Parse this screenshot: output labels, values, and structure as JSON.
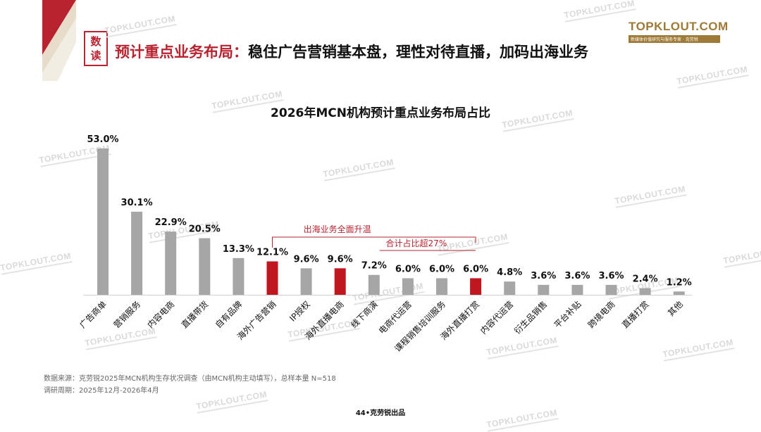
{
  "badge": {
    "line1": "数",
    "line2": "读"
  },
  "headline": {
    "highlight": "预计重点业务布局：",
    "rest": "稳住广告营销基本盘，理性对待直播，加码出海业务"
  },
  "logo": {
    "text": "TOPKLOUT.COM",
    "subtitle": "新媒体价值研究与服务专家 · 克劳锐"
  },
  "watermark": "TOPKLOUT.COM",
  "colors": {
    "accent": "#b8232f",
    "bar_default": "#a6a6a6",
    "bar_highlight": "#c0161f",
    "gold": "#9e7a36"
  },
  "chart_data": {
    "type": "bar",
    "title": "2026年MCN机构预计重点业务布局占比",
    "categories": [
      "广告商单",
      "营销服务",
      "内容电商",
      "直播带货",
      "自有品牌",
      "海外广告营销",
      "IP授权",
      "海外直播电商",
      "线下商演",
      "电商代运营",
      "课程销售培训服务",
      "海外直播打赏",
      "内容代运营",
      "衍生品销售",
      "平台补贴",
      "跨境电商",
      "直播打赏",
      "其他"
    ],
    "values": [
      53.0,
      30.1,
      22.9,
      20.5,
      13.3,
      12.1,
      9.6,
      9.6,
      7.2,
      6.0,
      6.0,
      6.0,
      4.8,
      3.6,
      3.6,
      3.6,
      2.4,
      1.2
    ],
    "value_labels": [
      "53.0%",
      "30.1%",
      "22.9%",
      "20.5%",
      "13.3%",
      "12.1%",
      "9.6%",
      "9.6%",
      "7.2%",
      "6.0%",
      "6.0%",
      "6.0%",
      "4.8%",
      "3.6%",
      "3.6%",
      "3.6%",
      "2.4%",
      "1.2%"
    ],
    "highlighted": [
      false,
      false,
      false,
      false,
      false,
      true,
      false,
      true,
      false,
      false,
      false,
      true,
      false,
      false,
      false,
      false,
      false,
      false
    ],
    "unit": "%",
    "ylim": [
      0,
      53
    ],
    "annotations": [
      {
        "text": "出海业务全面升温",
        "from_category": "海外广告营销",
        "to_category": "海外直播打赏"
      },
      {
        "text": "合计占比超27%"
      }
    ]
  },
  "footer": {
    "source": "数据来源：克劳锐2025年MCN机构生存状况调查（由MCN机构主动填写），总样本量 N=518",
    "period": "调研周期：2025年12月-2026年4月"
  },
  "page_label": "44•克劳锐出品"
}
